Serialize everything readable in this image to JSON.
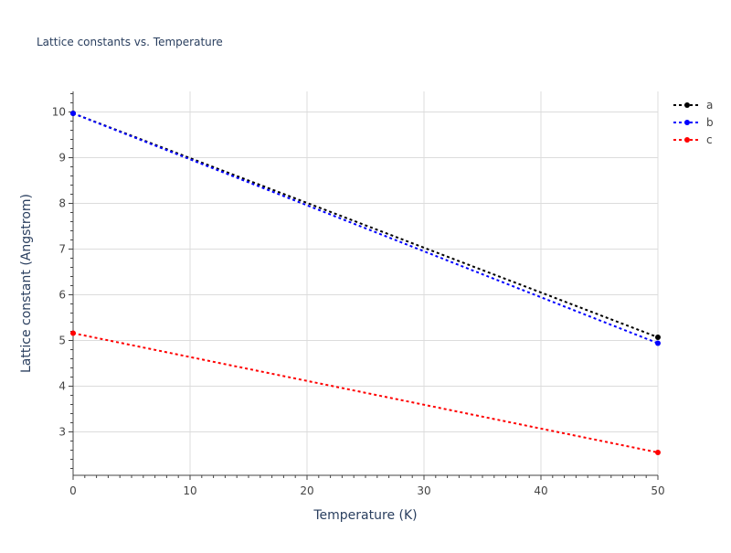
{
  "chart_data": {
    "type": "line",
    "title": "Lattice constants vs. Temperature",
    "xlabel": "Temperature (K)",
    "ylabel": "Lattice constant (Angstrom)",
    "xlim": [
      0,
      50
    ],
    "ylim": [
      2.05,
      10.45
    ],
    "xticks": [
      0,
      10,
      20,
      30,
      40,
      50
    ],
    "yticks": [
      3,
      4,
      5,
      6,
      7,
      8,
      9,
      10
    ],
    "grid": true,
    "legend_position": "top-right",
    "series": [
      {
        "name": "a",
        "color": "#000000",
        "x": [
          0,
          50
        ],
        "y": [
          9.97,
          5.07
        ]
      },
      {
        "name": "b",
        "color": "#0000ff",
        "x": [
          0,
          50
        ],
        "y": [
          9.97,
          4.94
        ]
      },
      {
        "name": "c",
        "color": "#ff0000",
        "x": [
          0,
          50
        ],
        "y": [
          5.16,
          2.55
        ]
      }
    ]
  }
}
